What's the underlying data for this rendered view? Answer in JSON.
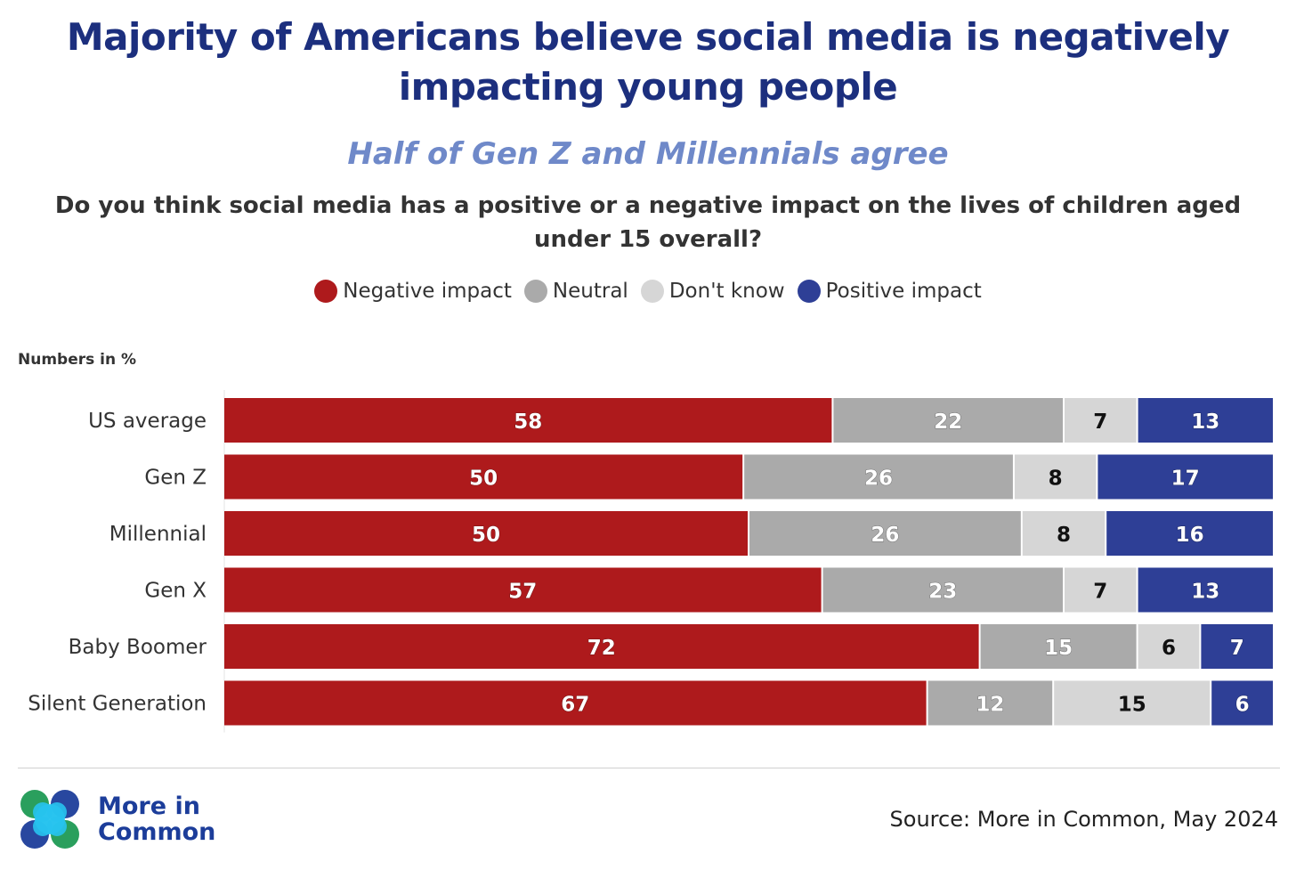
{
  "header": {
    "title": "Majority of Americans believe social media is negatively impacting young people",
    "subtitle": "Half of Gen Z and Millennials agree",
    "question": "Do you think social media has a positive or a negative impact on the lives of children aged under 15 overall?"
  },
  "units_note": "Numbers in %",
  "chart_data": {
    "type": "bar",
    "orientation": "horizontal",
    "stacked": true,
    "categories": [
      "US average",
      "Gen Z",
      "Millennial",
      "Gen X",
      "Baby Boomer",
      "Silent Generation"
    ],
    "series": [
      {
        "name": "Negative impact",
        "color": "#ae1a1c",
        "label_color": "#ffffff",
        "values": [
          58,
          50,
          50,
          57,
          72,
          67
        ]
      },
      {
        "name": "Neutral",
        "color": "#aaaaaa",
        "label_color": "#ffffff",
        "values": [
          22,
          26,
          26,
          23,
          15,
          12
        ]
      },
      {
        "name": "Don't know",
        "color": "#d6d6d6",
        "label_color": "#111111",
        "values": [
          7,
          8,
          8,
          7,
          6,
          15
        ]
      },
      {
        "name": "Positive impact",
        "color": "#2e3f96",
        "label_color": "#ffffff",
        "values": [
          13,
          17,
          16,
          13,
          7,
          6
        ]
      }
    ],
    "legend_position": "top",
    "grid": false
  },
  "footer": {
    "logo_text_line1": "More in",
    "logo_text_line2": "Common",
    "source": "Source: More in Common, May 2024"
  },
  "colors": {
    "title": "#1c2f7e",
    "subtitle": "#6f89c9",
    "logo_text": "#1c3d9a"
  }
}
